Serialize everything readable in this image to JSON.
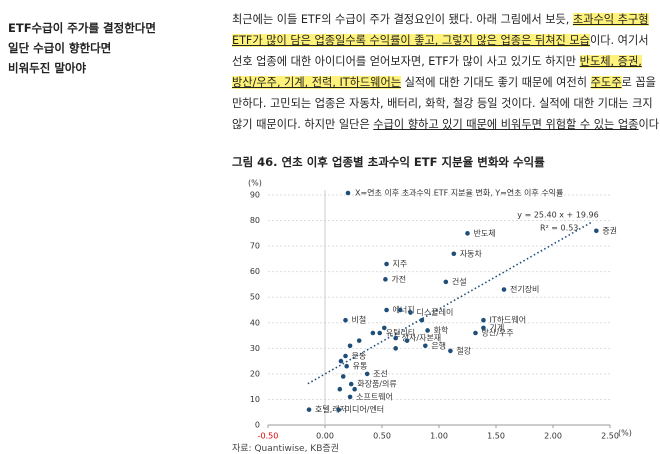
{
  "sidebar": [
    "ETF수급이 주가를 결정한다면",
    "일단 수급이 향한다면",
    "비워두진 말아야"
  ],
  "body": {
    "lines": [
      [
        {
          "text": "최근에는 이들 ETF의 수급이 주가 결정요인이 됐다. 아래 그림에서 보듯, "
        },
        {
          "text": "초과수익 추구형",
          "style": "hl"
        }
      ],
      [
        {
          "text": "ETF가 많이 담은 업종일수록 수익률이 좋고, 그렇지 않은 업종은 뒤쳐진 모습",
          "style": "hl"
        },
        {
          "text": "이다. 여기서"
        }
      ],
      [
        {
          "text": "선호 업종에 대한 아이디어를 얻어보자면, ETF가 많이 사고 있기도 하지만 "
        },
        {
          "text": "반도체, 증권,",
          "style": "hl"
        }
      ],
      [
        {
          "text": "방산/우주, 기계, 전력, IT하드웨어는",
          "style": "hl"
        },
        {
          "text": " 실적에 대한 기대도 좋기 때문에 여전히 "
        },
        {
          "text": "주도주",
          "style": "hl"
        },
        {
          "text": "로 꼽을"
        }
      ],
      [
        {
          "text": "만하다. 고민되는 업종은 자동차, 배터리, 화학, 철강 등일 것이다. 실적에 대한 기대는 크지"
        }
      ],
      [
        {
          "text": "않기 때문이다. 하지만 일단은 "
        },
        {
          "text": "수급이 향하고 있기 때문에 비워두면 위험할 수 있는 업종",
          "style": "ul"
        },
        {
          "text": "이다."
        }
      ]
    ]
  },
  "figure_title": "그림 46. 연초 이후 업종별 초과수익 ETF 지분율 변화와 수익률",
  "source": "자료: Quantiwise, KB증권",
  "chart_data": {
    "type": "scatter",
    "color": "#1f4e79",
    "legend_text": "X=연초 이후 초과수익 ETF 지분율 변화, Y=연초 이후 수익률",
    "y_unit": "(%)",
    "x_unit": "(%)",
    "xlim": [
      -0.5,
      2.5
    ],
    "ylim": [
      0,
      90
    ],
    "xticks": [
      {
        "value": -0.5,
        "label": "-0.50"
      },
      {
        "value": 0,
        "label": "0.00"
      },
      {
        "value": 0.5,
        "label": "0.50"
      },
      {
        "value": 1,
        "label": "1.00"
      },
      {
        "value": 1.5,
        "label": "1.50"
      },
      {
        "value": 2,
        "label": "2.00"
      },
      {
        "value": 2.5,
        "label": "2.50"
      }
    ],
    "yticks": [
      0,
      10,
      20,
      30,
      40,
      50,
      60,
      70,
      80,
      90
    ],
    "grid": true,
    "labels": [
      "반도체",
      "증권",
      "자동차",
      "지주",
      "가전",
      "건설",
      "전기장비",
      "에너지",
      "디스플레이",
      "IT하드웨어",
      "비철",
      "유틸리티",
      "화학",
      "기계",
      "방산/우주",
      "상사/자본재",
      "은행",
      "철강",
      "운송",
      "유통",
      "조선",
      "화장품/의류",
      "소프트웨어",
      "호텔,레저",
      "미디어/엔터",
      null,
      null,
      null,
      null,
      null,
      null,
      null,
      null,
      null,
      null,
      null,
      null
    ],
    "x": [
      1.25,
      2.38,
      1.13,
      0.54,
      0.53,
      1.06,
      1.57,
      0.54,
      0.75,
      1.39,
      0.18,
      0.48,
      0.9,
      1.39,
      1.32,
      0.62,
      0.88,
      1.1,
      0.18,
      0.19,
      0.37,
      0.23,
      0.22,
      -0.14,
      0.12,
      0.3,
      0.42,
      0.52,
      0.22,
      0.14,
      0.26,
      0.13,
      0.16,
      0.66,
      0.72,
      0.85,
      0.62
    ],
    "values": [
      75,
      76,
      67,
      63,
      57,
      56,
      53,
      45,
      44,
      41,
      41,
      36,
      37,
      38,
      36,
      34,
      31,
      29,
      27,
      23,
      20,
      16,
      11,
      6,
      6,
      33,
      36,
      38,
      31,
      25,
      14,
      14,
      19,
      45,
      33,
      41,
      30
    ],
    "trendline": {
      "slope": 25.4,
      "intercept": 19.96,
      "xrange": [
        -0.15,
        2.35
      ],
      "equation": "y = 25.40 x + 19.96",
      "r2_label": "R² = 0.53"
    }
  }
}
